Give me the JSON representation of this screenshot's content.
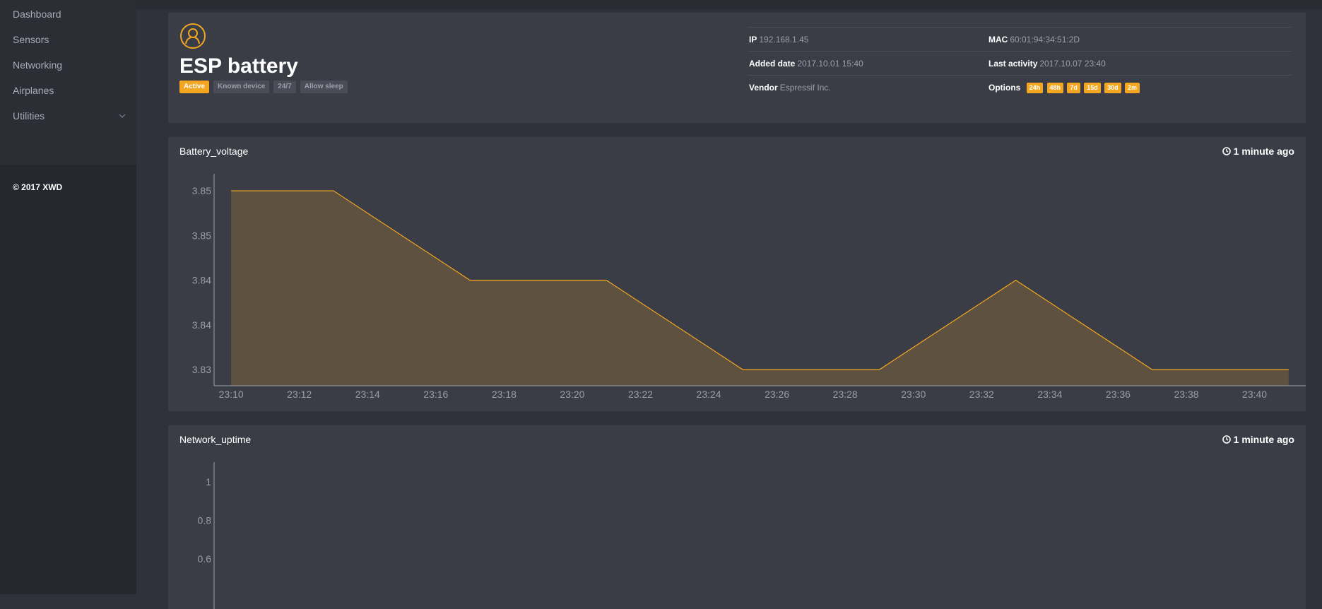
{
  "sidebar": {
    "items": [
      {
        "label": "Dashboard"
      },
      {
        "label": "Sensors"
      },
      {
        "label": "Networking"
      },
      {
        "label": "Airplanes"
      },
      {
        "label": "Utilities"
      }
    ],
    "footer": "© 2017 XWD"
  },
  "device": {
    "icon": "user-circle-icon",
    "title": "ESP battery",
    "badges": [
      "Active",
      "Known device",
      "24/7",
      "Allow sleep"
    ],
    "info": {
      "ip_label": "IP",
      "ip": "192.168.1.45",
      "mac_label": "MAC",
      "mac": "60:01:94:34:51:2D",
      "added_label": "Added date",
      "added": "2017.10.01 15:40",
      "last_label": "Last activity",
      "last": "2017.10.07 23:40",
      "vendor_label": "Vendor",
      "vendor": "Espressif Inc.",
      "options_label": "Options",
      "options": [
        "24h",
        "48h",
        "7d",
        "15d",
        "30d",
        "2m"
      ]
    }
  },
  "colors": {
    "accent": "#f4a621"
  },
  "chart_data": [
    {
      "type": "area",
      "title": "Battery_voltage",
      "updated": "1 minute ago",
      "x": [
        "23:10",
        "23:11",
        "23:13",
        "23:17",
        "23:21",
        "23:25",
        "23:29",
        "23:33",
        "23:37",
        "23:41"
      ],
      "values": [
        3.852,
        3.852,
        3.852,
        3.842,
        3.842,
        3.832,
        3.832,
        3.842,
        3.832,
        3.832
      ],
      "x_ticks": [
        "23:10",
        "23:12",
        "23:14",
        "23:16",
        "23:18",
        "23:20",
        "23:22",
        "23:24",
        "23:26",
        "23:28",
        "23:30",
        "23:32",
        "23:34",
        "23:36",
        "23:38",
        "23:40"
      ],
      "y_ticks": [
        "3.85",
        "3.85",
        "3.84",
        "3.84",
        "3.83"
      ],
      "y_tick_values": [
        3.852,
        3.847,
        3.842,
        3.837,
        3.832
      ],
      "ylim": [
        3.8302,
        3.8539
      ],
      "x_range_minutes": [
        -0.5,
        31.5
      ]
    },
    {
      "type": "area",
      "title": "Network_uptime",
      "updated": "1 minute ago",
      "x": [],
      "values": [],
      "y_ticks": [
        "1",
        "0.8",
        "0.6"
      ],
      "y_tick_values": [
        1,
        0.8,
        0.6
      ],
      "ylim": [
        0,
        1.1
      ]
    }
  ]
}
